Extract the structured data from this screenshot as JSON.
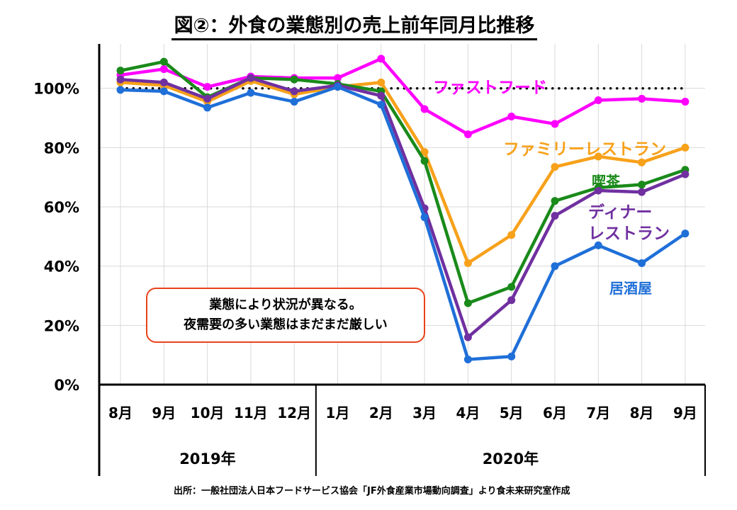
{
  "title": "図②：外食の業態別の売上前年同月比推移",
  "callout": {
    "line1": "業態により状況が異なる。",
    "line2": "夜需要の多い業態はまだまだ厳しい"
  },
  "source": "出所：一般社団法人日本フードサービス協会「JF外食産業市場動向調査」より食未来研究室作成",
  "chart_data": {
    "type": "line",
    "title": "図②：外食の業態別の売上前年同月比推移",
    "categories": [
      "8月",
      "9月",
      "10月",
      "11月",
      "12月",
      "1月",
      "2月",
      "3月",
      "4月",
      "5月",
      "6月",
      "7月",
      "8月",
      "9月"
    ],
    "year_groups": [
      {
        "label": "2019年",
        "count": 5
      },
      {
        "label": "2020年",
        "count": 9
      }
    ],
    "y_ticks": [
      "0%",
      "20%",
      "40%",
      "60%",
      "80%",
      "100%"
    ],
    "ylim": [
      0,
      115
    ],
    "grid": true,
    "reference_line": {
      "value": 100,
      "style": "dotted"
    },
    "series": [
      {
        "name": "ファストフード",
        "color": "#ff00ff",
        "values": [
          104.5,
          106.5,
          100.5,
          104,
          103.5,
          103.5,
          110,
          93,
          84.5,
          90.5,
          88,
          96,
          96.5,
          95.5
        ]
      },
      {
        "name": "ファミリーレストラン",
        "color": "#f7a11a",
        "values": [
          102,
          101,
          95.5,
          102.5,
          98,
          100.5,
          102,
          78.5,
          41,
          50.5,
          73.5,
          77,
          75,
          80
        ]
      },
      {
        "name": "喫茶",
        "color": "#1a8a1a",
        "values": [
          106,
          109,
          97,
          103.5,
          103,
          101.5,
          99,
          75.5,
          27.5,
          33,
          62,
          66.5,
          67.5,
          72.5
        ]
      },
      {
        "name": "ディナーレストラン",
        "label_lines": [
          "ディナー",
          "レストラン"
        ],
        "color": "#7030a0",
        "values": [
          103,
          102,
          96.5,
          103.5,
          99,
          101,
          97.5,
          59.5,
          16,
          28.5,
          57,
          65.5,
          65,
          71
        ]
      },
      {
        "name": "居酒屋",
        "color": "#1f6fd8",
        "values": [
          99.5,
          99,
          93.5,
          98.5,
          95.5,
          100.5,
          94.5,
          56.5,
          8.5,
          9.5,
          40,
          47,
          41,
          51
        ]
      }
    ]
  }
}
